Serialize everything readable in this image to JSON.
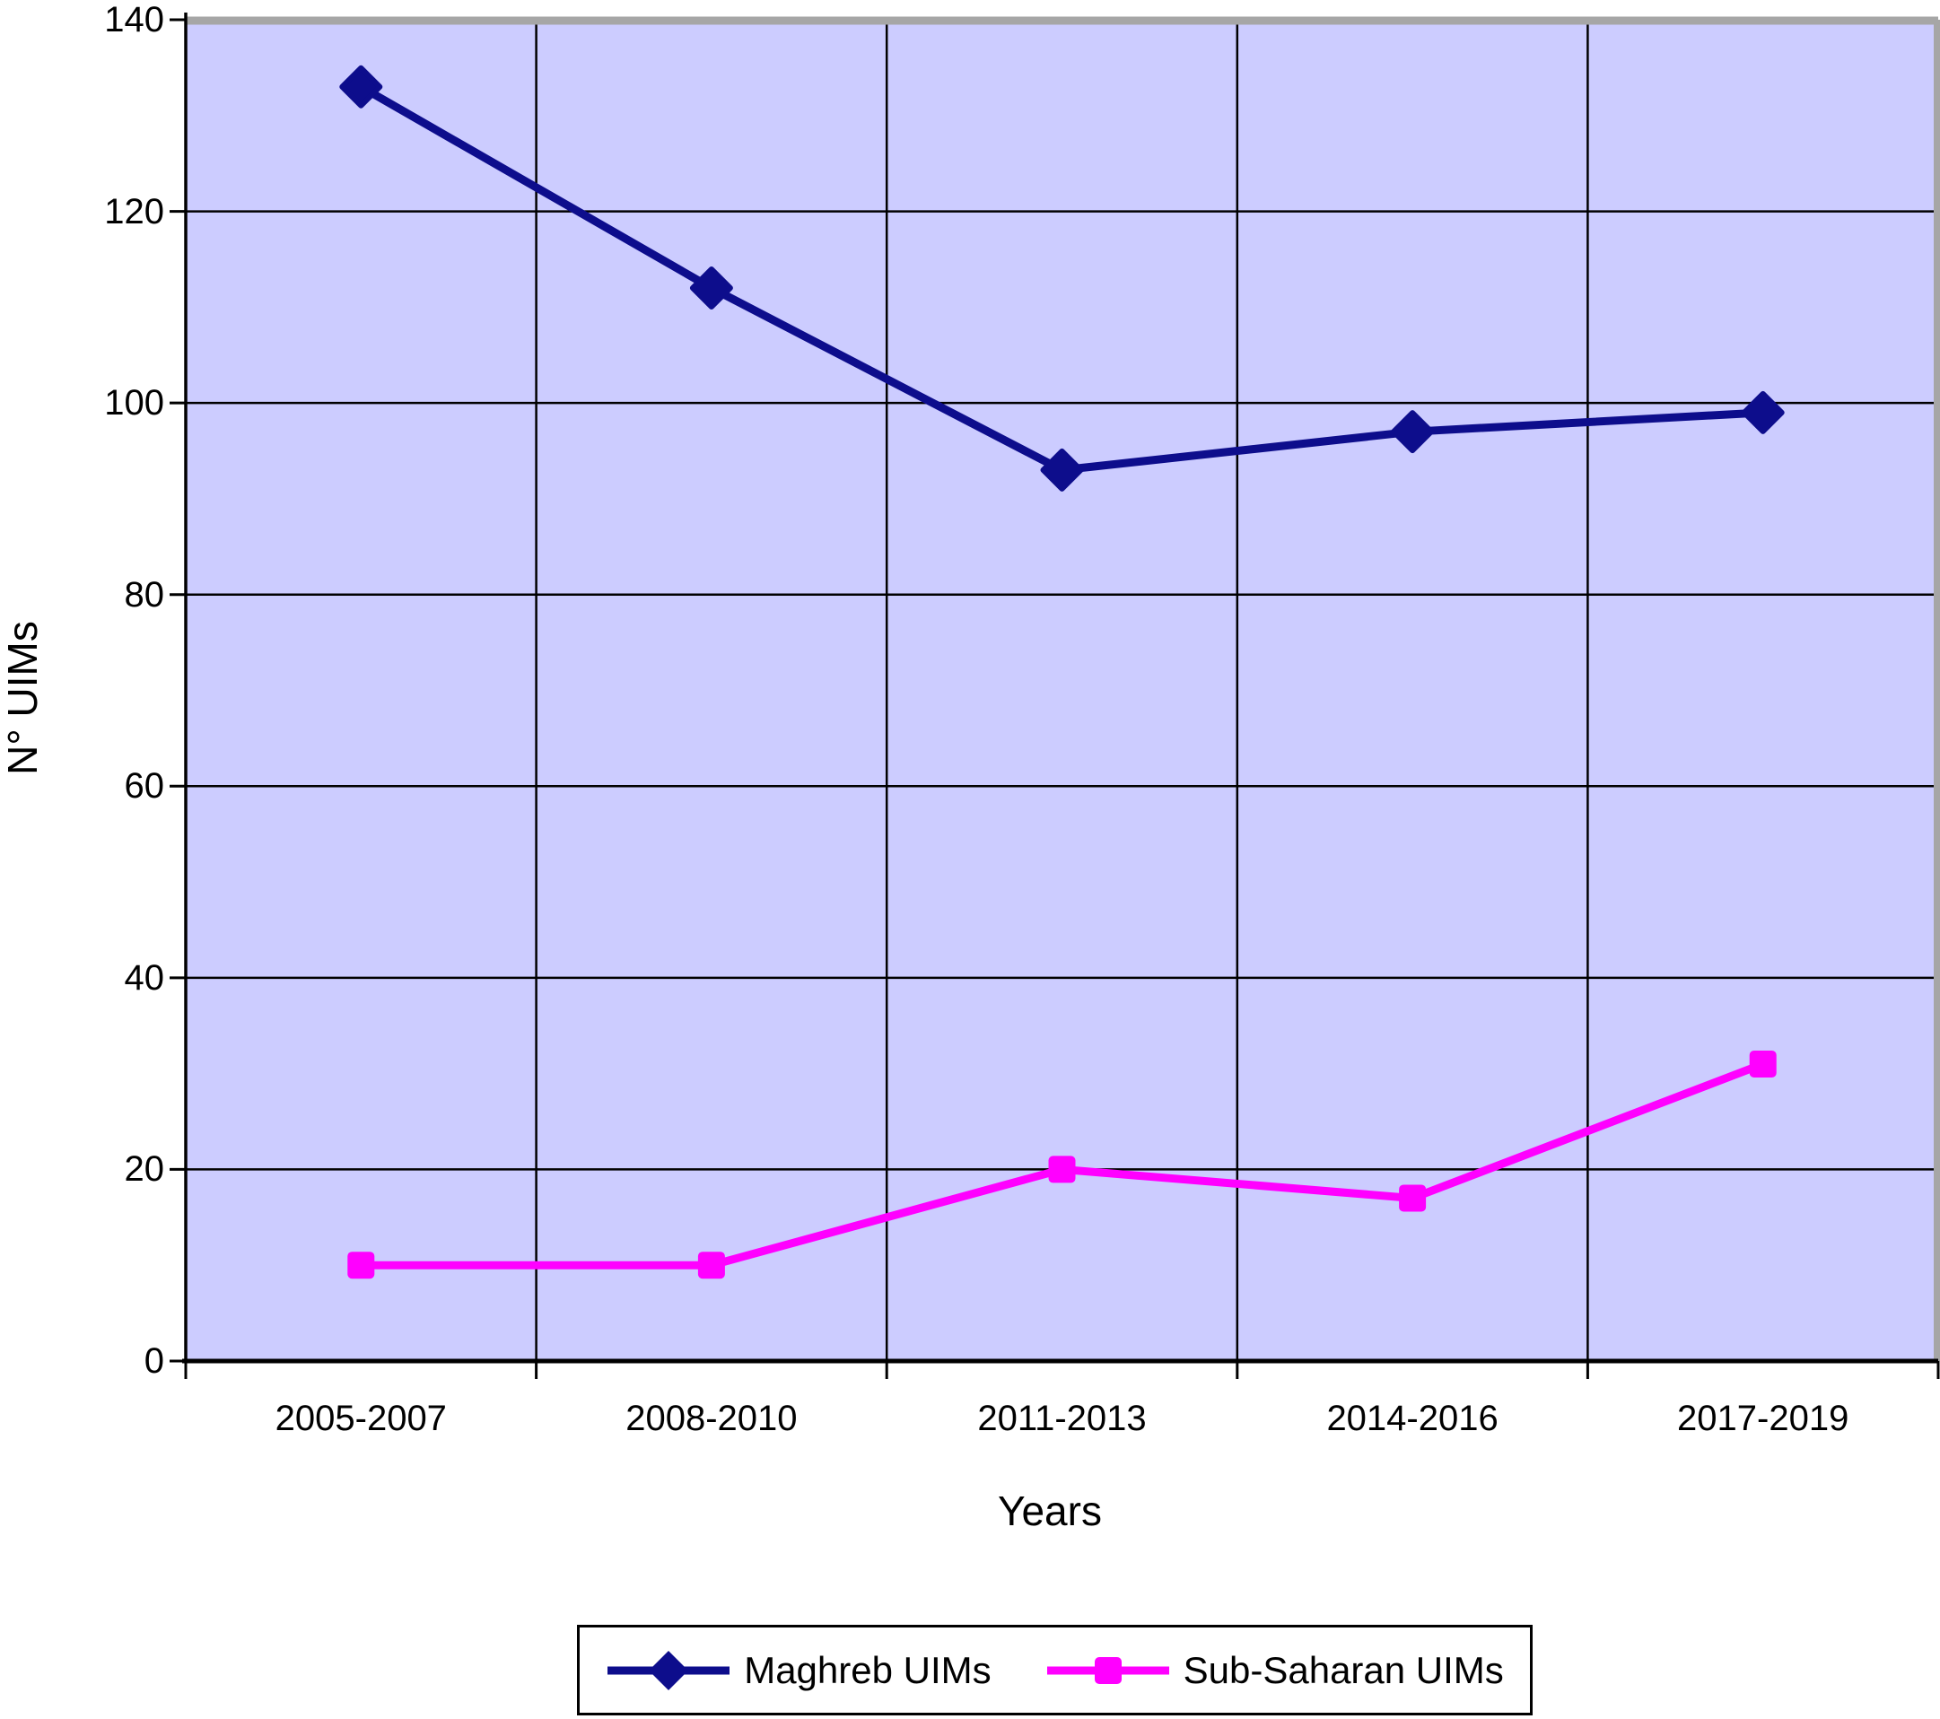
{
  "chart_data": {
    "type": "line",
    "title": "",
    "xlabel": "Years",
    "ylabel": "N° UIMs",
    "categories": [
      "2005-2007",
      "2008-2010",
      "2011-2013",
      "2014-2016",
      "2017-2019"
    ],
    "series": [
      {
        "name": "Maghreb UIMs",
        "color": "#0d0d8c",
        "marker": "diamond",
        "values": [
          133,
          112,
          93,
          97,
          99
        ]
      },
      {
        "name": "Sub-Saharan UIMs",
        "color": "#ff00ff",
        "marker": "square",
        "values": [
          10,
          10,
          20,
          17,
          31
        ]
      }
    ],
    "ylim": [
      0,
      140
    ],
    "ytick_step": 20,
    "yticks": [
      "0",
      "20",
      "40",
      "60",
      "80",
      "100",
      "120",
      "140"
    ],
    "grid": true,
    "legend_position": "bottom",
    "plot_bg": "#ccccff",
    "grid_color": "#000000",
    "axis_color": "#000000",
    "outer_border_color": "#a6a6a6"
  }
}
